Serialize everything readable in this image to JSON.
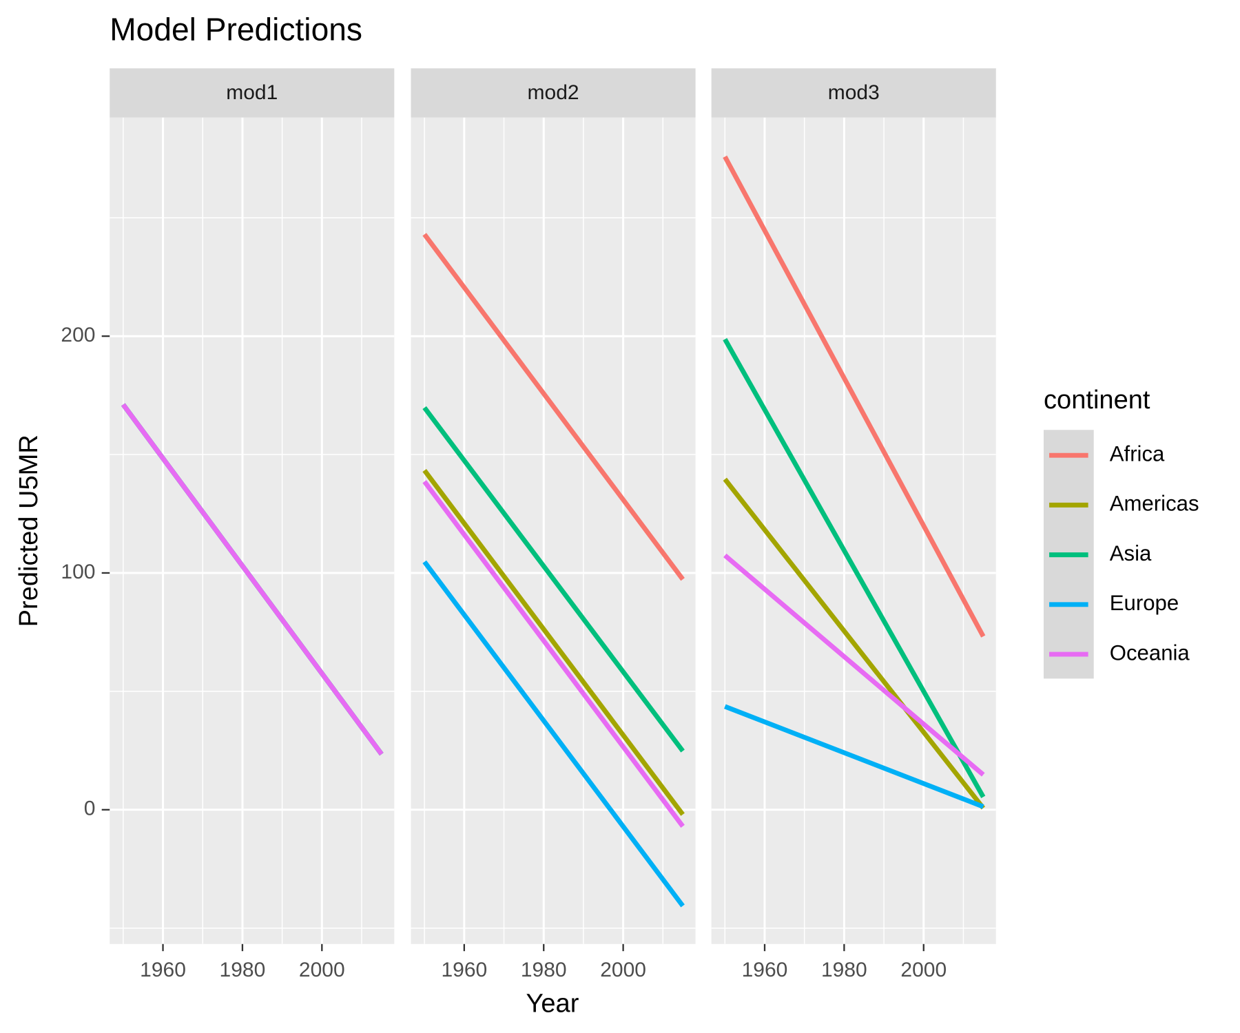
{
  "chart_data": {
    "type": "line",
    "title": "Model Predictions",
    "xlabel": "Year",
    "ylabel": "Predicted U5MR",
    "legend_title": "continent",
    "legend": "right",
    "grid": true,
    "x": [
      1950,
      2015
    ],
    "xlim": [
      1946.6,
      2018.2
    ],
    "ylim": [
      -56.7,
      292.3
    ],
    "xticks": [
      1960,
      1980,
      2000
    ],
    "yticks": [
      0,
      100,
      200
    ],
    "minor_xticks": [
      1950,
      1970,
      1990,
      2010
    ],
    "minor_yticks": [
      -50,
      50,
      150,
      250
    ],
    "facets": [
      {
        "title": "mod1",
        "series": [
          {
            "name": "Africa",
            "color": "#f8766d",
            "values": [
              171.1,
              23.5
            ]
          },
          {
            "name": "Americas",
            "color": "#a3a500",
            "values": [
              171.1,
              23.5
            ]
          },
          {
            "name": "Asia",
            "color": "#00bf7d",
            "values": [
              171.1,
              23.5
            ]
          },
          {
            "name": "Europe",
            "color": "#00b0f6",
            "values": [
              171.1,
              23.5
            ]
          },
          {
            "name": "Oceania",
            "color": "#e76bf3",
            "values": [
              171.1,
              23.5
            ]
          }
        ]
      },
      {
        "title": "mod2",
        "series": [
          {
            "name": "Africa",
            "color": "#f8766d",
            "values": [
              243,
              97.3
            ]
          },
          {
            "name": "Americas",
            "color": "#a3a500",
            "values": [
              143.3,
              -2
            ]
          },
          {
            "name": "Asia",
            "color": "#00bf7d",
            "values": [
              169.8,
              24.8
            ]
          },
          {
            "name": "Europe",
            "color": "#00b0f6",
            "values": [
              104.7,
              -40.6
            ]
          },
          {
            "name": "Oceania",
            "color": "#e76bf3",
            "values": [
              138.6,
              -7
            ]
          }
        ]
      },
      {
        "title": "mod3",
        "series": [
          {
            "name": "Africa",
            "color": "#f8766d",
            "values": [
              275.8,
              73.2
            ]
          },
          {
            "name": "Americas",
            "color": "#a3a500",
            "values": [
              139.6,
              0.7
            ]
          },
          {
            "name": "Asia",
            "color": "#00bf7d",
            "values": [
              198.7,
              5.4
            ]
          },
          {
            "name": "Europe",
            "color": "#00b0f6",
            "values": [
              43.6,
              1.3
            ]
          },
          {
            "name": "Oceania",
            "color": "#e76bf3",
            "values": [
              107.4,
              14.8
            ]
          }
        ]
      }
    ]
  }
}
